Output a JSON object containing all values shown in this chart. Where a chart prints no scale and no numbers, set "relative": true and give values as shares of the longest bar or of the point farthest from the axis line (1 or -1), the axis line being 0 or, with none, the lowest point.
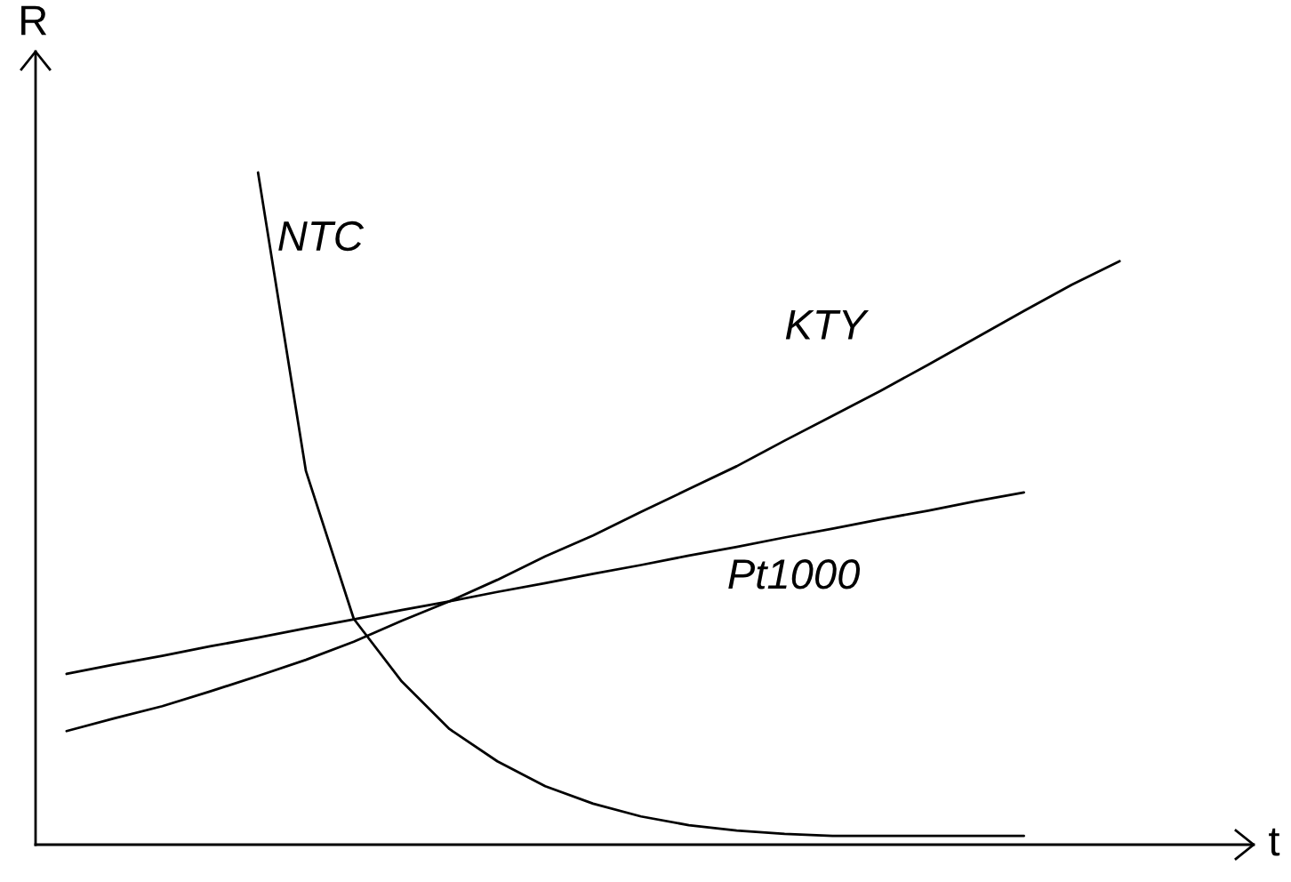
{
  "chart_data": {
    "type": "line",
    "relative": true,
    "xlabel": "t",
    "ylabel": "R",
    "grid": false,
    "marker": "none",
    "line_style": "solid",
    "categories": [
      null,
      null,
      null,
      null,
      null,
      null,
      null,
      null,
      null,
      null,
      null,
      null,
      null,
      null,
      null,
      null,
      null,
      null,
      null,
      null,
      null,
      null,
      null
    ],
    "series": [
      {
        "name": "NTC",
        "color": "#000000",
        "values": [
          null,
          null,
          null,
          null,
          1,
          0.556,
          0.336,
          0.243,
          0.172,
          0.124,
          0.087,
          0.061,
          0.042,
          0.029,
          0.021,
          0.016,
          0.013,
          0.013,
          0.013,
          0.013,
          0.013,
          null,
          null
        ]
      },
      {
        "name": "KTY",
        "color": "#000000",
        "values": [
          0.169,
          0.188,
          0.206,
          0.228,
          0.251,
          0.275,
          0.302,
          0.333,
          0.362,
          0.394,
          0.429,
          0.46,
          0.495,
          0.529,
          0.563,
          0.601,
          0.638,
          0.675,
          0.714,
          0.754,
          0.794,
          0.833,
          0.868
        ]
      },
      {
        "name": "Pt1000",
        "color": "#000000",
        "values": [
          0.254,
          0.268,
          0.281,
          0.295,
          0.308,
          0.322,
          0.335,
          0.349,
          0.362,
          0.376,
          0.389,
          0.403,
          0.416,
          0.43,
          0.443,
          0.457,
          0.47,
          0.484,
          0.497,
          0.511,
          0.524,
          null,
          null
        ]
      }
    ]
  }
}
